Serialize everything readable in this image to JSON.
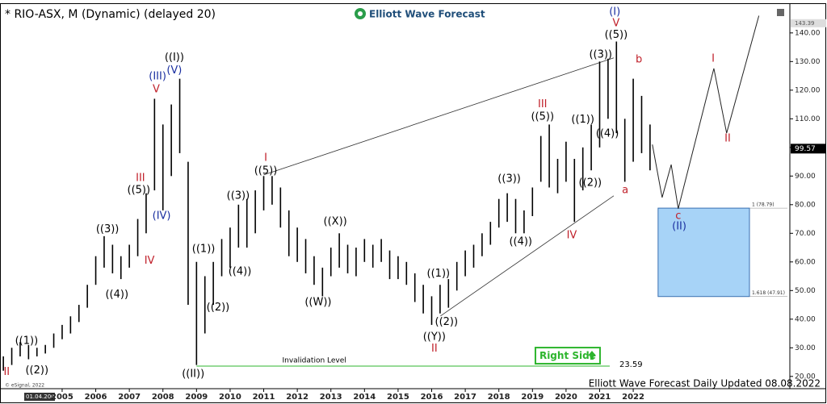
{
  "chart_data": {
    "type": "range-bar",
    "title": "* RIO-ASX, M (Dynamic) (delayed 20)",
    "brand": "Elliott Wave Forecast",
    "footer": "Elliott Wave Forecast Daily Updated 08.08.2022",
    "copyright": "© eSignal, 2022",
    "start_date": "01.04.2003",
    "color": "#000000",
    "xlim": [
      2003.15,
      2026.59
    ],
    "xticks": [
      2005,
      2006,
      2007,
      2008,
      2009,
      2010,
      2011,
      2012,
      2013,
      2014,
      2015,
      2016,
      2017,
      2018,
      2019,
      2020,
      2021,
      2022
    ],
    "ylim": [
      16,
      151.5
    ],
    "yticks": [
      {
        "value": 20,
        "label": "20.00"
      },
      {
        "value": 30,
        "label": "30.00"
      },
      {
        "value": 40,
        "label": "40.00"
      },
      {
        "value": 50,
        "label": "50.00"
      },
      {
        "value": 60,
        "label": "60.00"
      },
      {
        "value": 70,
        "label": "70.00"
      },
      {
        "value": 80,
        "label": "80.00"
      },
      {
        "value": 90,
        "label": "90.00"
      },
      {
        "value": 100,
        "label": "100.00"
      },
      {
        "value": 110,
        "label": "110.00"
      },
      {
        "value": 120,
        "label": "120.00"
      },
      {
        "value": 130,
        "label": "130.00"
      },
      {
        "value": 140,
        "label": "140.00"
      }
    ],
    "grid": false,
    "x": [
      2003.25,
      2003.5,
      2003.75,
      2004.0,
      2004.25,
      2004.5,
      2004.75,
      2005.0,
      2005.25,
      2005.5,
      2005.75,
      2006.0,
      2006.25,
      2006.5,
      2006.75,
      2007.0,
      2007.25,
      2007.5,
      2007.75,
      2008.0,
      2008.25,
      2008.5,
      2008.75,
      2009.0,
      2009.25,
      2009.5,
      2009.75,
      2010.0,
      2010.25,
      2010.5,
      2010.75,
      2011.0,
      2011.25,
      2011.5,
      2011.75,
      2012.0,
      2012.25,
      2012.5,
      2012.75,
      2013.0,
      2013.25,
      2013.5,
      2013.75,
      2014.0,
      2014.25,
      2014.5,
      2014.75,
      2015.0,
      2015.25,
      2015.5,
      2015.75,
      2016.0,
      2016.25,
      2016.5,
      2016.75,
      2017.0,
      2017.25,
      2017.5,
      2017.75,
      2018.0,
      2018.25,
      2018.5,
      2018.75,
      2019.0,
      2019.25,
      2019.5,
      2019.75,
      2020.0,
      2020.25,
      2020.5,
      2020.75,
      2021.0,
      2021.25,
      2021.5,
      2021.75,
      2022.0,
      2022.25,
      2022.5
    ],
    "high": [
      27,
      30,
      32,
      31,
      30,
      31,
      35,
      38,
      41,
      45,
      52,
      62,
      69,
      66,
      62,
      66,
      75,
      84,
      117,
      108,
      115,
      124,
      95,
      60,
      55,
      60,
      68,
      72,
      80,
      82,
      85,
      90,
      90,
      86,
      78,
      72,
      68,
      62,
      58,
      65,
      70,
      66,
      65,
      68,
      66,
      68,
      64,
      62,
      60,
      56,
      52,
      48,
      52,
      54,
      60,
      64,
      66,
      70,
      74,
      82,
      84,
      82,
      78,
      86,
      104,
      108,
      96,
      102,
      96,
      100,
      108,
      130,
      131,
      137,
      110,
      124,
      118,
      108
    ],
    "low": [
      22,
      24,
      27,
      26,
      27,
      28,
      30,
      33,
      35,
      39,
      44,
      52,
      58,
      56,
      54,
      58,
      62,
      70,
      85,
      78,
      90,
      98,
      45,
      24,
      35,
      45,
      55,
      58,
      65,
      65,
      70,
      78,
      80,
      72,
      62,
      60,
      56,
      52,
      48,
      55,
      58,
      56,
      55,
      60,
      58,
      60,
      54,
      54,
      52,
      46,
      42,
      38,
      42,
      44,
      50,
      55,
      58,
      62,
      66,
      72,
      74,
      70,
      70,
      76,
      88,
      86,
      84,
      88,
      74,
      85,
      92,
      100,
      110,
      105,
      88,
      95,
      98,
      92
    ],
    "last_price": 99.57,
    "high_marker": 143.39,
    "projection": {
      "x": [
        2022.57,
        2022.86,
        2023.13,
        2023.34,
        2024.4,
        2024.78,
        2025.74
      ],
      "y": [
        101,
        82.5,
        94,
        78.6,
        127.6,
        105,
        146
      ]
    },
    "trend_lines": [
      {
        "x": [
          2011.0,
          2021.42
        ],
        "y": [
          90.4,
          131.3
        ]
      },
      {
        "x": [
          2016.26,
          2021.42
        ],
        "y": [
          41.1,
          83.1
        ]
      }
    ],
    "target_box": {
      "x_start": 2022.74,
      "x_end": 2025.46,
      "top": 78.79,
      "bottom": 47.91,
      "top_label": "1 (78.79)",
      "bottom_label": "1.618 (47.91)",
      "color": "#a7d3f7"
    },
    "invalidation": {
      "label": "Invalidation Level",
      "value": 23.59,
      "x_start": 2009.0,
      "x_end": 2021.3,
      "color": "#2db52d",
      "badge": "Right Side"
    },
    "waves": [
      {
        "text": "II",
        "x": 2003.35,
        "y": 21.5,
        "color": "#c0202a"
      },
      {
        "text": "((1))",
        "x": 2003.94,
        "y": 32.4,
        "color": "#000000"
      },
      {
        "text": "((2))",
        "x": 2004.25,
        "y": 22,
        "color": "#000000"
      },
      {
        "text": "((3))",
        "x": 2006.35,
        "y": 71.3,
        "color": "#000000"
      },
      {
        "text": "((4))",
        "x": 2006.63,
        "y": 48.5,
        "color": "#000000"
      },
      {
        "text": "((5))",
        "x": 2007.28,
        "y": 85,
        "color": "#000000"
      },
      {
        "text": "III",
        "x": 2007.33,
        "y": 89.3,
        "color": "#c0202a"
      },
      {
        "text": "IV",
        "x": 2007.6,
        "y": 60.3,
        "color": "#c0202a"
      },
      {
        "text": "(IV)",
        "x": 2007.96,
        "y": 76,
        "color": "#1a2fa0"
      },
      {
        "text": "(III)",
        "x": 2007.84,
        "y": 124.8,
        "color": "#1a2fa0"
      },
      {
        "text": "V",
        "x": 2007.8,
        "y": 120.3,
        "color": "#c0202a"
      },
      {
        "text": "(V)",
        "x": 2008.34,
        "y": 126.8,
        "color": "#1a2fa0"
      },
      {
        "text": "((I))",
        "x": 2008.34,
        "y": 131.3,
        "color": "#000000"
      },
      {
        "text": "((II))",
        "x": 2008.9,
        "y": 20.8,
        "color": "#000000"
      },
      {
        "text": "((1))",
        "x": 2009.21,
        "y": 64.5,
        "color": "#000000"
      },
      {
        "text": "((2))",
        "x": 2009.64,
        "y": 44,
        "color": "#000000"
      },
      {
        "text": "((3))",
        "x": 2010.24,
        "y": 83,
        "color": "#000000"
      },
      {
        "text": "((4))",
        "x": 2010.29,
        "y": 56.6,
        "color": "#000000"
      },
      {
        "text": "I",
        "x": 2011.06,
        "y": 96.3,
        "color": "#c0202a"
      },
      {
        "text": "((5))",
        "x": 2011.06,
        "y": 91.8,
        "color": "#000000"
      },
      {
        "text": "((X))",
        "x": 2013.13,
        "y": 74,
        "color": "#000000"
      },
      {
        "text": "((W))",
        "x": 2012.62,
        "y": 45.9,
        "color": "#000000"
      },
      {
        "text": "((1))",
        "x": 2016.2,
        "y": 55.8,
        "color": "#000000"
      },
      {
        "text": "((2))",
        "x": 2016.44,
        "y": 38.9,
        "color": "#000000"
      },
      {
        "text": "((Y))",
        "x": 2016.08,
        "y": 33.8,
        "color": "#000000"
      },
      {
        "text": "II",
        "x": 2016.08,
        "y": 29.6,
        "color": "#c0202a"
      },
      {
        "text": "((3))",
        "x": 2018.31,
        "y": 89,
        "color": "#000000"
      },
      {
        "text": "((4))",
        "x": 2018.65,
        "y": 67,
        "color": "#000000"
      },
      {
        "text": "III",
        "x": 2019.3,
        "y": 115,
        "color": "#c0202a"
      },
      {
        "text": "((5))",
        "x": 2019.3,
        "y": 110.7,
        "color": "#000000"
      },
      {
        "text": "IV",
        "x": 2020.17,
        "y": 69.3,
        "color": "#c0202a"
      },
      {
        "text": "((1))",
        "x": 2020.5,
        "y": 109.6,
        "color": "#000000"
      },
      {
        "text": "((2))",
        "x": 2020.72,
        "y": 87.6,
        "color": "#000000"
      },
      {
        "text": "((3))",
        "x": 2021.03,
        "y": 132.4,
        "color": "#000000"
      },
      {
        "text": "((4))",
        "x": 2021.23,
        "y": 104.8,
        "color": "#000000"
      },
      {
        "text": "((5))",
        "x": 2021.49,
        "y": 139.2,
        "color": "#000000"
      },
      {
        "text": "V",
        "x": 2021.49,
        "y": 143.4,
        "color": "#c0202a"
      },
      {
        "text": "(I)",
        "x": 2021.45,
        "y": 147.3,
        "color": "#1a2fa0"
      },
      {
        "text": "a",
        "x": 2021.76,
        "y": 85,
        "color": "#c0202a"
      },
      {
        "text": "b",
        "x": 2022.17,
        "y": 130.7,
        "color": "#c0202a"
      },
      {
        "text": "c",
        "x": 2023.34,
        "y": 76,
        "color": "#c0202a"
      },
      {
        "text": "(II)",
        "x": 2023.37,
        "y": 72.4,
        "color": "#1a2fa0"
      },
      {
        "text": "I",
        "x": 2024.38,
        "y": 131,
        "color": "#c0202a"
      },
      {
        "text": "II",
        "x": 2024.81,
        "y": 103,
        "color": "#c0202a"
      }
    ]
  }
}
